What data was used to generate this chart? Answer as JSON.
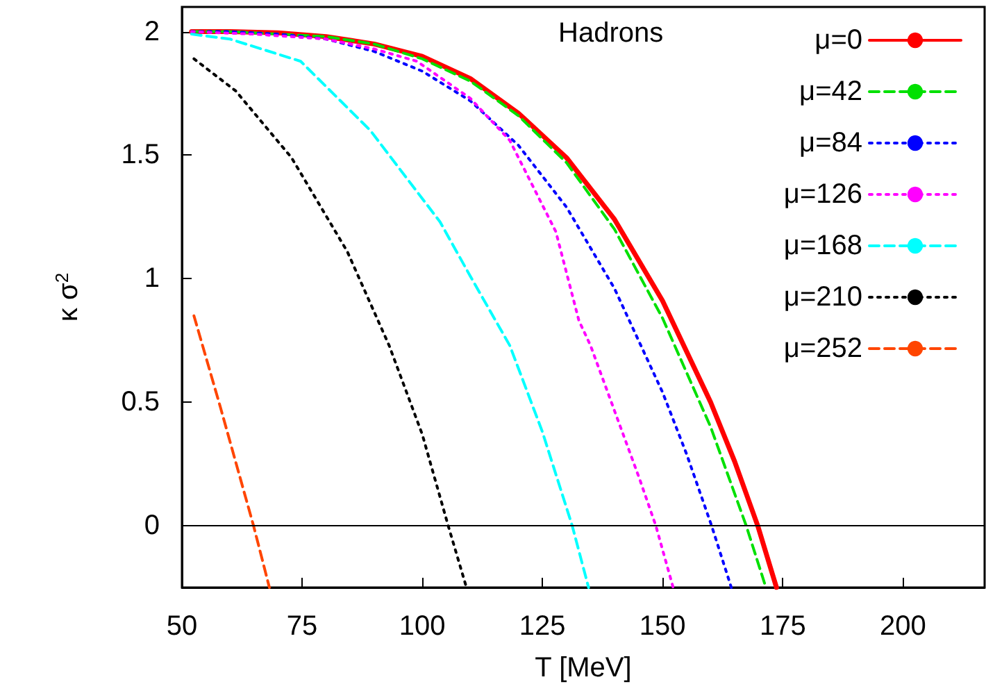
{
  "chart_data": {
    "type": "line",
    "xlabel": "T [MeV]",
    "ylabel": "κ σ$^{2}$",
    "annotations": [
      "Hadrons"
    ],
    "xlim": [
      50,
      217
    ],
    "ylim": [
      -0.25,
      2.1
    ],
    "xticks": [
      50,
      75,
      100,
      125,
      150,
      175,
      200
    ],
    "yticks": [
      0,
      0.5,
      1,
      1.5,
      2
    ],
    "grid": false,
    "legend": "top right",
    "marker": "none",
    "ref_lines": [
      {
        "axis": "y",
        "value": 0,
        "color": "#000000"
      }
    ],
    "series": [
      {
        "name": "μ=0",
        "color": "#ff0000",
        "line_style": "solid",
        "x": [
          52,
          60,
          70,
          80,
          90,
          100,
          110,
          120,
          130,
          140,
          150,
          160,
          165,
          169.8,
          173.7
        ],
        "values": [
          2.0,
          2.0,
          1.995,
          1.98,
          1.95,
          1.9,
          1.81,
          1.67,
          1.49,
          1.24,
          0.91,
          0.5,
          0.26,
          0,
          -0.25
        ]
      },
      {
        "name": "μ=42",
        "color": "#00e000",
        "line_style": "dashed",
        "x": [
          52,
          60,
          70,
          80,
          90,
          100,
          110,
          120,
          130,
          140,
          150,
          160,
          167.4,
          171.5
        ],
        "values": [
          2.0,
          2.0,
          1.99,
          1.98,
          1.95,
          1.89,
          1.8,
          1.66,
          1.47,
          1.2,
          0.84,
          0.4,
          0,
          -0.25
        ]
      },
      {
        "name": "μ=84",
        "color": "#0000ff",
        "line_style": "dotted",
        "x": [
          52,
          60,
          70,
          80,
          90,
          100,
          110,
          120,
          130,
          140,
          150,
          155,
          160.2,
          164.3
        ],
        "values": [
          2.0,
          2.0,
          1.99,
          1.97,
          1.92,
          1.84,
          1.72,
          1.54,
          1.29,
          0.96,
          0.54,
          0.29,
          0,
          -0.25
        ]
      },
      {
        "name": "μ=126",
        "color": "#ff00ff",
        "line_style": "dotted",
        "x": [
          52,
          65,
          80,
          90,
          98.9,
          110,
          118.2,
          127.8,
          132.6,
          135,
          145.2,
          148.6,
          152.2
        ],
        "values": [
          2.0,
          1.99,
          1.97,
          1.93,
          1.88,
          1.73,
          1.56,
          1.19,
          0.83,
          0.73,
          0.19,
          0,
          -0.25
        ]
      },
      {
        "name": "μ=168",
        "color": "#00ffff",
        "line_style": "dashed",
        "x": [
          52,
          60,
          74.7,
          89.2,
          103.7,
          110,
          118.2,
          125,
          131.2,
          134.6
        ],
        "values": [
          1.99,
          1.97,
          1.88,
          1.6,
          1.23,
          1.01,
          0.73,
          0.38,
          0,
          -0.25
        ]
      },
      {
        "name": "μ=210",
        "color": "#000000",
        "line_style": "dotted",
        "x": [
          52.5,
          61.2,
          72.8,
          84.4,
          93.1,
          100,
          105.4,
          109.2
        ],
        "values": [
          1.89,
          1.76,
          1.49,
          1.11,
          0.73,
          0.37,
          0,
          -0.25
        ]
      },
      {
        "name": "μ=252",
        "color": "#ff4500",
        "line_style": "dashed",
        "x": [
          52.5,
          58,
          64.9,
          68.2
        ],
        "values": [
          0.85,
          0.48,
          0,
          -0.25
        ]
      }
    ]
  }
}
